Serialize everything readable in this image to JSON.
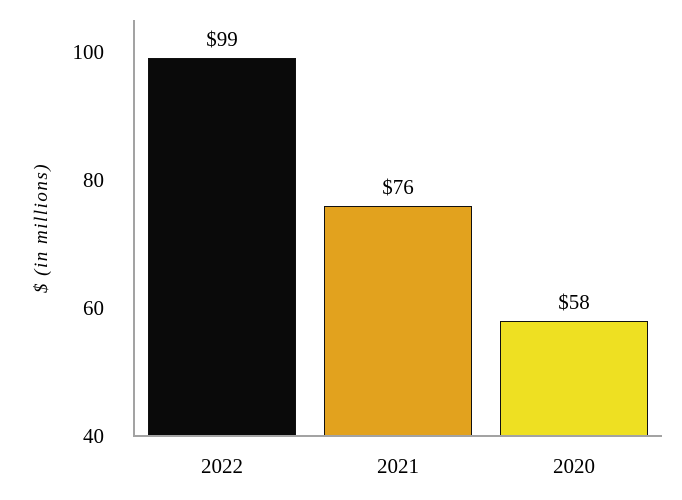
{
  "chart_data": {
    "type": "bar",
    "title": "",
    "xlabel": "",
    "ylabel": "$ (in millions)",
    "categories": [
      "2022",
      "2021",
      "2020"
    ],
    "values": [
      99,
      76,
      58
    ],
    "value_labels": [
      "$99",
      "$76",
      "$58"
    ],
    "bar_colors": [
      "#0a0a0a",
      "#e2a21e",
      "#eee022"
    ],
    "bar_border_color": "#111111",
    "ylim": [
      40,
      100
    ],
    "yticks": [
      100,
      80,
      60,
      40
    ],
    "grid": false,
    "legend": null,
    "axis_color": "#a3a3a3",
    "data_labels_position": "above-bars"
  }
}
